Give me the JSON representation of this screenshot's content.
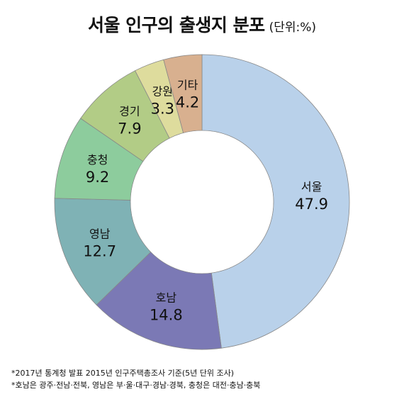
{
  "title": {
    "main": "서울 인구의 출생지 분포",
    "unit": "(단위:%)"
  },
  "chart_data": {
    "type": "pie",
    "donut": true,
    "title": "서울 인구의 출생지 분포",
    "unit": "(단위:%)",
    "categories": [
      "서울",
      "호남",
      "영남",
      "충청",
      "경기",
      "강원",
      "기타"
    ],
    "values": [
      47.9,
      14.8,
      12.7,
      9.2,
      7.9,
      3.3,
      4.2
    ],
    "colors": [
      "#b9d1ea",
      "#7b79b5",
      "#7fb2b5",
      "#8dcc9d",
      "#b2cc86",
      "#dedc9d",
      "#d8b08f"
    ]
  },
  "notes": [
    "*2017년 통계청 발표 2015년 인구주택총조사 기준(5년 단위 조사)",
    "*호남은 광주·전남·전북, 영남은 부·울·대구·경남·경북, 충청은 대전·충남·충북"
  ]
}
